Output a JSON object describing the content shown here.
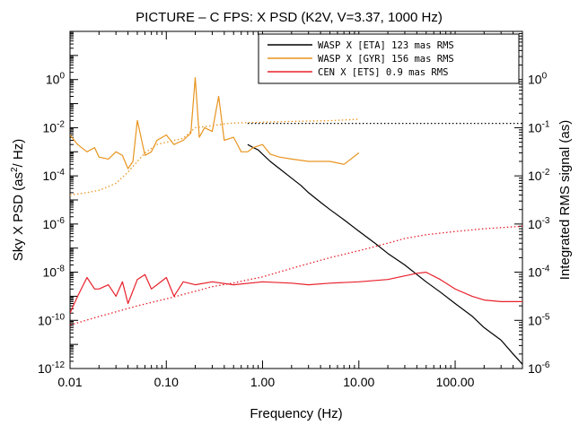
{
  "chart_data": {
    "type": "line",
    "title": "PICTURE – C FPS: X PSD  (K2V,  V=3.37,  1000 Hz)",
    "xlabel": "Frequency (Hz)",
    "ylabel_left_main": "Sky X PSD (as",
    "ylabel_left_sup": "2",
    "ylabel_left_tail": "/ Hz)",
    "ylabel_right": "Integrated RMS signal (as)",
    "xscale": "log",
    "yscale": "log",
    "xlim": [
      0.01,
      500
    ],
    "ylim_left": [
      1e-12,
      100.0
    ],
    "ylim_right": [
      1e-06,
      10.0
    ],
    "x_ticks": [
      {
        "value": 0.01,
        "label": "0.01"
      },
      {
        "value": 0.1,
        "label": "0.10"
      },
      {
        "value": 1,
        "label": "1.00"
      },
      {
        "value": 10,
        "label": "10.00"
      },
      {
        "value": 100,
        "label": "100.00"
      }
    ],
    "y_left_ticks": [
      {
        "exp": -12,
        "base": "10",
        "sup": "-12"
      },
      {
        "exp": -10,
        "base": "10",
        "sup": "-10"
      },
      {
        "exp": -8,
        "base": "10",
        "sup": "-8"
      },
      {
        "exp": -6,
        "base": "10",
        "sup": "-6"
      },
      {
        "exp": -4,
        "base": "10",
        "sup": "-4"
      },
      {
        "exp": -2,
        "base": "10",
        "sup": "-2"
      },
      {
        "exp": 0,
        "base": "10",
        "sup": "0"
      }
    ],
    "y_right_ticks": [
      {
        "exp": -6,
        "base": "10",
        "sup": "-6"
      },
      {
        "exp": -5,
        "base": "10",
        "sup": "-5"
      },
      {
        "exp": -4,
        "base": "10",
        "sup": "-4"
      },
      {
        "exp": -3,
        "base": "10",
        "sup": "-3"
      },
      {
        "exp": -2,
        "base": "10",
        "sup": "-2"
      },
      {
        "exp": -1,
        "base": "10",
        "sup": "-1"
      },
      {
        "exp": 0,
        "base": "10",
        "sup": "0"
      }
    ],
    "legend_position": "top-right",
    "series": [
      {
        "name": "WASP X [ETA] 123 mas RMS",
        "color": "#000000",
        "style": "solid",
        "axis": "left",
        "x": [
          0.7,
          0.8,
          0.9,
          1.0,
          1.2,
          1.5,
          2.0,
          2.5,
          3.0,
          4.0,
          5.0,
          7.0,
          10,
          15,
          20,
          30,
          50,
          70,
          100,
          150,
          200,
          300,
          400,
          500
        ],
        "y": [
          0.002,
          0.0015,
          0.0012,
          0.0008,
          0.0004,
          0.0002,
          8e-05,
          4e-05,
          2e-05,
          8e-06,
          4e-06,
          1.5e-06,
          5e-07,
          1.5e-07,
          6e-08,
          2e-08,
          4e-09,
          1.5e-09,
          5e-10,
          1.5e-10,
          5e-11,
          1.5e-11,
          4e-12,
          1.5e-12
        ]
      },
      {
        "name": "WASP X [GYR] 156 mas RMS",
        "color": "#e8941e",
        "style": "solid",
        "axis": "left",
        "x": [
          0.01,
          0.012,
          0.015,
          0.018,
          0.02,
          0.025,
          0.03,
          0.035,
          0.04,
          0.045,
          0.05,
          0.06,
          0.07,
          0.08,
          0.1,
          0.12,
          0.15,
          0.18,
          0.2,
          0.22,
          0.25,
          0.3,
          0.35,
          0.4,
          0.5,
          0.6,
          0.7,
          0.8,
          1.0,
          1.2,
          1.5,
          2.0,
          3.0,
          4.0,
          5.0,
          7.0,
          10.0
        ],
        "y": [
          0.005,
          0.002,
          0.001,
          0.0015,
          0.0006,
          0.0005,
          0.001,
          0.0007,
          0.0002,
          0.0004,
          0.02,
          0.0007,
          0.001,
          0.003,
          0.005,
          0.002,
          0.003,
          0.006,
          1.2,
          0.004,
          0.01,
          0.007,
          0.2,
          0.003,
          0.004,
          0.001,
          0.001,
          0.0015,
          0.002,
          0.0008,
          0.0006,
          0.0005,
          0.0004,
          0.0004,
          0.0004,
          0.0003,
          0.0009
        ]
      },
      {
        "name": "CEN X [ETS] 0.9 mas RMS",
        "color": "#e8202a",
        "style": "solid",
        "axis": "left",
        "x": [
          0.01,
          0.012,
          0.015,
          0.018,
          0.02,
          0.025,
          0.03,
          0.035,
          0.04,
          0.05,
          0.06,
          0.07,
          0.08,
          0.1,
          0.12,
          0.15,
          0.2,
          0.3,
          0.5,
          1.0,
          2.0,
          3.0,
          5.0,
          10.0,
          20.0,
          30.0,
          40.0,
          50.0,
          70.0,
          100.0,
          150.0,
          200.0,
          300.0,
          500.0
        ],
        "y": [
          2e-10,
          1e-09,
          6e-09,
          2e-09,
          2e-09,
          3e-09,
          1e-09,
          4e-09,
          5e-10,
          5e-09,
          8e-09,
          2e-09,
          3e-09,
          6e-09,
          1e-09,
          4e-09,
          3e-09,
          4e-09,
          3e-09,
          4e-09,
          3.5e-09,
          3e-09,
          3.5e-09,
          4e-09,
          5e-09,
          7e-09,
          9e-09,
          1e-08,
          5e-09,
          2e-09,
          1e-09,
          7e-10,
          6e-10,
          6e-10
        ]
      },
      {
        "name": "",
        "color": "#e8941e",
        "style": "dotted",
        "axis": "right",
        "x": [
          0.01,
          0.015,
          0.02,
          0.025,
          0.03,
          0.04,
          0.05,
          0.06,
          0.08,
          0.1,
          0.15,
          0.2,
          0.3,
          0.4,
          0.5,
          1.0,
          2.0,
          5.0,
          10.0
        ],
        "y": [
          0.004,
          0.0045,
          0.005,
          0.006,
          0.007,
          0.012,
          0.02,
          0.03,
          0.045,
          0.05,
          0.06,
          0.1,
          0.11,
          0.12,
          0.125,
          0.13,
          0.135,
          0.14,
          0.15
        ]
      },
      {
        "name": "",
        "color": "#000000",
        "style": "dotted",
        "axis": "right",
        "x": [
          0.7,
          1.0,
          2.0,
          5.0,
          10.0,
          50.0,
          100.0,
          500.0
        ],
        "y": [
          0.123,
          0.123,
          0.123,
          0.123,
          0.123,
          0.123,
          0.123,
          0.123
        ]
      },
      {
        "name": "",
        "color": "#e8202a",
        "style": "dotted",
        "axis": "right",
        "x": [
          0.01,
          0.02,
          0.03,
          0.05,
          0.1,
          0.2,
          0.3,
          0.5,
          1.0,
          2.0,
          5.0,
          10.0,
          20.0,
          30.0,
          50.0,
          100.0,
          200.0,
          500.0
        ],
        "y": [
          8e-06,
          1.2e-05,
          1.5e-05,
          2e-05,
          2.8e-05,
          4e-05,
          5e-05,
          6e-05,
          8e-05,
          0.00012,
          0.0002,
          0.00028,
          0.0004,
          0.0005,
          0.0006,
          0.0007,
          0.0008,
          0.0009
        ]
      }
    ]
  }
}
